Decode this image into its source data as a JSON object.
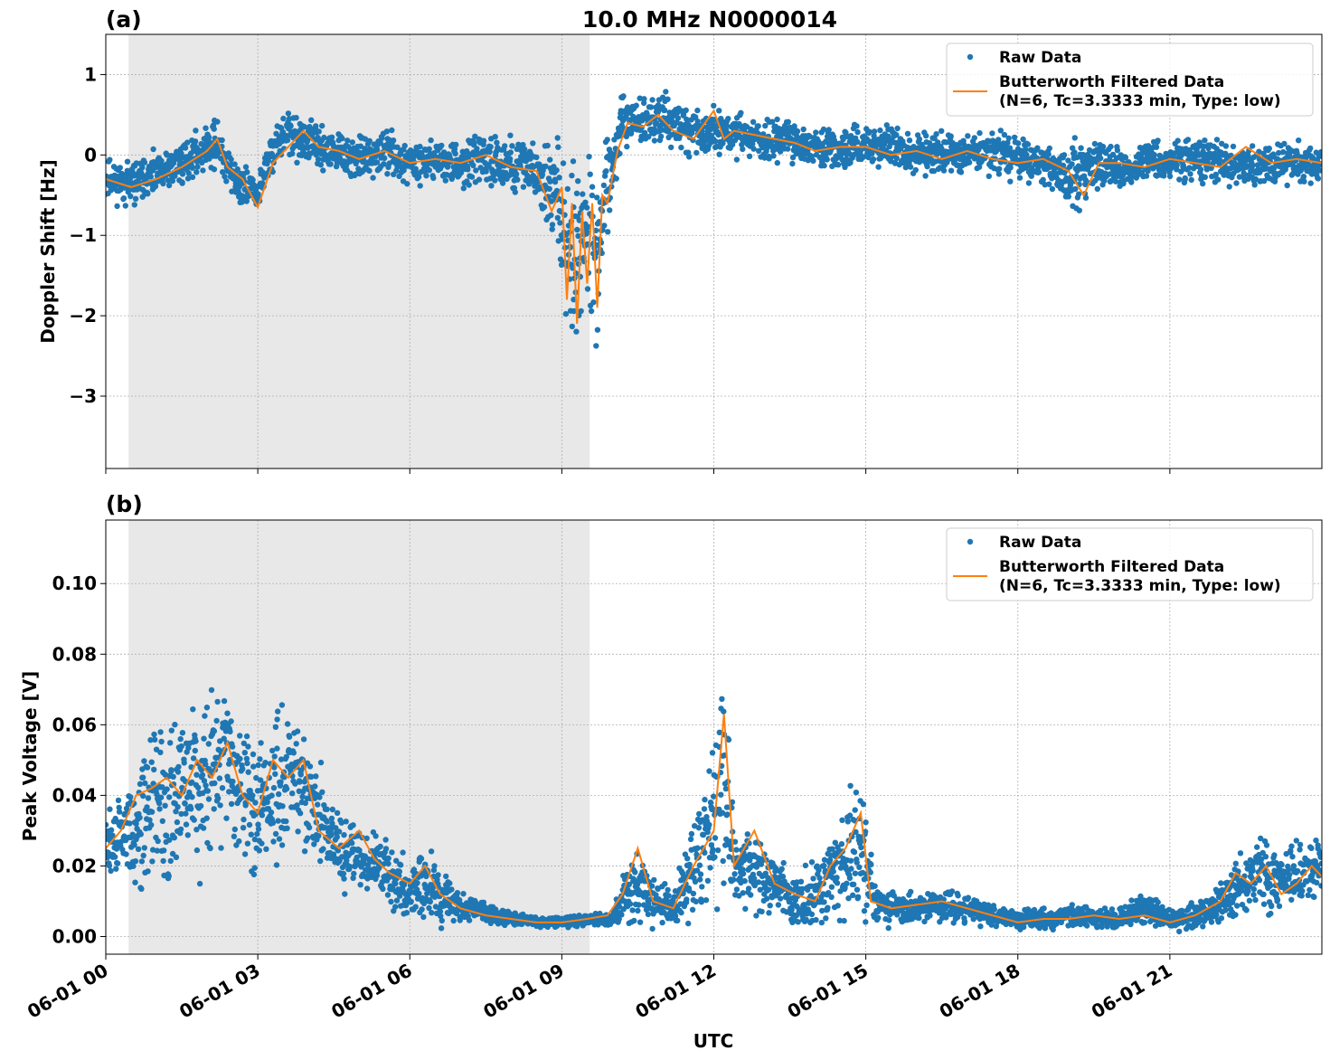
{
  "figure_title": "10.0 MHz N0000014",
  "xlabel": "UTC",
  "x_ticks": [
    "06-01 00",
    "06-01 03",
    "06-01 06",
    "06-01 09",
    "06-01 12",
    "06-01 15",
    "06-01 18",
    "06-01 21"
  ],
  "colors": {
    "raw": "#1f77b4",
    "filtered": "#ff7f0e",
    "shade": "#e8e8e8",
    "grid": "#b0b0b0"
  },
  "legend": {
    "raw_label": "Raw Data",
    "filtered_label_line1": "Butterworth Filtered Data",
    "filtered_label_line2": "(N=6, Tc=3.3333 min, Type: low)",
    "placement": "top-right"
  },
  "chart_data": [
    {
      "type": "scatter",
      "panel_label": "(a)",
      "title": "10.0 MHz N0000014",
      "ylabel": "Doppler Shift [Hz]",
      "xlim_hours": [
        0,
        24
      ],
      "ylim": [
        -3.9,
        1.5
      ],
      "y_ticks": [
        1,
        0,
        -1,
        -2,
        -3
      ],
      "y_tick_labels": [
        "1",
        "0",
        "−1",
        "−2",
        "−3"
      ],
      "shaded_region_hours": [
        0.45,
        9.55
      ],
      "grid": true,
      "series": [
        {
          "name": "Raw Data",
          "x_hours": [
            0,
            0.5,
            1,
            1.5,
            2,
            2.2,
            2.5,
            3,
            3.3,
            3.6,
            4,
            4.5,
            5,
            5.5,
            6,
            6.5,
            7,
            7.5,
            8,
            8.5,
            8.9,
            9.1,
            9.3,
            9.5,
            9.7,
            9.9,
            10.2,
            10.5,
            11,
            11.5,
            12,
            12.5,
            13,
            13.5,
            14,
            14.5,
            15,
            15.5,
            16,
            16.5,
            17,
            17.5,
            18,
            18.5,
            19,
            19.2,
            19.5,
            20,
            20.5,
            21,
            21.5,
            22,
            22.5,
            23,
            23.5,
            24
          ],
          "y_center": [
            -0.3,
            -0.35,
            -0.25,
            -0.1,
            0.1,
            0.15,
            -0.3,
            -0.5,
            0.1,
            0.25,
            0.15,
            0,
            -0.05,
            0.05,
            -0.1,
            -0.05,
            -0.1,
            -0.05,
            -0.1,
            -0.2,
            -0.6,
            -1.0,
            -1.2,
            -0.8,
            -1.2,
            -0.4,
            0.4,
            0.4,
            0.45,
            0.3,
            0.3,
            0.25,
            0.2,
            0.2,
            0.1,
            0.05,
            0.1,
            0.1,
            0,
            0.05,
            0,
            0.05,
            -0.05,
            -0.1,
            -0.3,
            -0.25,
            -0.1,
            -0.15,
            -0.1,
            -0.1,
            -0.05,
            -0.1,
            -0.15,
            -0.1,
            -0.1,
            -0.15
          ],
          "y_spread": [
            0.35,
            0.35,
            0.35,
            0.35,
            0.35,
            0.45,
            0.35,
            0.35,
            0.4,
            0.4,
            0.35,
            0.35,
            0.35,
            0.35,
            0.35,
            0.35,
            0.35,
            0.4,
            0.45,
            0.5,
            1.1,
            1.5,
            1.5,
            1.3,
            1.5,
            0.8,
            0.45,
            0.4,
            0.45,
            0.4,
            0.4,
            0.35,
            0.35,
            0.35,
            0.35,
            0.35,
            0.35,
            0.35,
            0.35,
            0.35,
            0.35,
            0.35,
            0.35,
            0.35,
            0.45,
            0.6,
            0.4,
            0.35,
            0.35,
            0.35,
            0.35,
            0.35,
            0.35,
            0.35,
            0.35,
            0.35
          ]
        },
        {
          "name": "Butterworth Filtered Data (N=6, Tc=3.3333 min, Type: low)",
          "x_hours": [
            0,
            0.5,
            1,
            1.5,
            2,
            2.2,
            2.4,
            2.7,
            3,
            3.3,
            3.6,
            3.9,
            4.2,
            4.6,
            5,
            5.5,
            6,
            6.5,
            7,
            7.5,
            8,
            8.5,
            8.8,
            9.0,
            9.1,
            9.2,
            9.3,
            9.4,
            9.5,
            9.6,
            9.7,
            9.8,
            9.9,
            10.1,
            10.3,
            10.6,
            10.9,
            11.2,
            11.6,
            12,
            12.2,
            12.4,
            12.8,
            13.2,
            13.6,
            14,
            14.5,
            15,
            15.5,
            16,
            16.5,
            17,
            17.5,
            18,
            18.5,
            19,
            19.3,
            19.6,
            20,
            20.5,
            21,
            21.5,
            22,
            22.5,
            23,
            23.5,
            24
          ],
          "y": [
            -0.3,
            -0.4,
            -0.3,
            -0.15,
            0.05,
            0.2,
            -0.15,
            -0.3,
            -0.65,
            -0.1,
            0.1,
            0.3,
            0.1,
            0.05,
            -0.05,
            0.05,
            -0.1,
            -0.05,
            -0.1,
            0,
            -0.15,
            -0.2,
            -0.7,
            -0.4,
            -1.8,
            -0.6,
            -2.1,
            -0.7,
            -1.6,
            -0.6,
            -1.9,
            -0.5,
            -0.6,
            0.05,
            0.4,
            0.35,
            0.5,
            0.3,
            0.2,
            0.55,
            0.2,
            0.3,
            0.25,
            0.2,
            0.15,
            0.05,
            0.1,
            0.1,
            0,
            0.05,
            -0.05,
            0.05,
            -0.05,
            -0.1,
            -0.05,
            -0.2,
            -0.5,
            -0.1,
            -0.1,
            -0.15,
            -0.05,
            -0.1,
            -0.15,
            0.1,
            -0.1,
            -0.05,
            -0.1
          ]
        }
      ]
    },
    {
      "type": "scatter",
      "panel_label": "(b)",
      "ylabel": "Peak Voltage [V]",
      "xlim_hours": [
        0,
        24
      ],
      "ylim": [
        -0.005,
        0.118
      ],
      "y_ticks": [
        0.0,
        0.02,
        0.04,
        0.06,
        0.08,
        0.1
      ],
      "y_tick_labels": [
        "0.00",
        "0.02",
        "0.04",
        "0.06",
        "0.08",
        "0.10"
      ],
      "shaded_region_hours": [
        0.45,
        9.55
      ],
      "grid": true,
      "series": [
        {
          "name": "Raw Data",
          "x_hours": [
            0,
            0.5,
            1,
            1.5,
            2,
            2.3,
            2.6,
            3,
            3.5,
            4,
            4.5,
            5,
            5.5,
            6,
            6.3,
            6.6,
            7,
            7.5,
            8,
            8.5,
            9,
            9.5,
            10,
            10.4,
            10.8,
            11.2,
            11.6,
            12,
            12.2,
            12.4,
            12.8,
            13.2,
            13.6,
            14,
            14.5,
            14.9,
            15.2,
            15.6,
            16,
            16.5,
            17,
            17.5,
            18,
            18.5,
            19,
            19.5,
            20,
            20.5,
            21,
            21.5,
            22,
            22.5,
            22.8,
            23,
            23.5,
            24
          ],
          "y_center": [
            0.025,
            0.03,
            0.04,
            0.042,
            0.045,
            0.05,
            0.045,
            0.035,
            0.045,
            0.04,
            0.025,
            0.022,
            0.02,
            0.012,
            0.015,
            0.012,
            0.008,
            0.007,
            0.005,
            0.004,
            0.004,
            0.005,
            0.005,
            0.015,
            0.01,
            0.008,
            0.02,
            0.03,
            0.045,
            0.02,
            0.02,
            0.015,
            0.01,
            0.012,
            0.02,
            0.025,
            0.01,
            0.008,
            0.008,
            0.009,
            0.008,
            0.006,
            0.005,
            0.005,
            0.006,
            0.005,
            0.005,
            0.008,
            0.005,
            0.006,
            0.01,
            0.015,
            0.02,
            0.015,
            0.018,
            0.02
          ],
          "y_spread": [
            0.012,
            0.02,
            0.03,
            0.03,
            0.03,
            0.03,
            0.028,
            0.025,
            0.03,
            0.025,
            0.015,
            0.012,
            0.012,
            0.01,
            0.018,
            0.01,
            0.006,
            0.004,
            0.003,
            0.002,
            0.002,
            0.002,
            0.003,
            0.015,
            0.01,
            0.008,
            0.02,
            0.03,
            0.05,
            0.02,
            0.015,
            0.012,
            0.01,
            0.012,
            0.02,
            0.025,
            0.008,
            0.006,
            0.006,
            0.006,
            0.005,
            0.004,
            0.004,
            0.004,
            0.004,
            0.004,
            0.004,
            0.006,
            0.004,
            0.005,
            0.008,
            0.012,
            0.015,
            0.012,
            0.012,
            0.012
          ]
        },
        {
          "name": "Butterworth Filtered Data (N=6, Tc=3.3333 min, Type: low)",
          "x_hours": [
            0,
            0.3,
            0.6,
            0.9,
            1.2,
            1.5,
            1.8,
            2.1,
            2.4,
            2.7,
            3,
            3.3,
            3.6,
            3.9,
            4.2,
            4.6,
            5,
            5.3,
            5.6,
            6,
            6.3,
            6.6,
            7,
            7.5,
            8,
            8.5,
            9,
            9.5,
            9.9,
            10.2,
            10.5,
            10.8,
            11.2,
            11.6,
            12,
            12.2,
            12.4,
            12.8,
            13.2,
            13.6,
            14,
            14.3,
            14.6,
            14.9,
            15.1,
            15.5,
            16,
            16.5,
            17,
            17.5,
            18,
            18.5,
            19,
            19.5,
            20,
            20.5,
            21,
            21.5,
            22,
            22.3,
            22.6,
            22.9,
            23.2,
            23.5,
            23.8,
            24
          ],
          "y": [
            0.025,
            0.03,
            0.04,
            0.042,
            0.045,
            0.04,
            0.05,
            0.045,
            0.055,
            0.04,
            0.035,
            0.05,
            0.045,
            0.05,
            0.03,
            0.025,
            0.03,
            0.022,
            0.018,
            0.015,
            0.02,
            0.012,
            0.008,
            0.006,
            0.005,
            0.004,
            0.004,
            0.005,
            0.006,
            0.012,
            0.025,
            0.01,
            0.008,
            0.02,
            0.03,
            0.063,
            0.02,
            0.03,
            0.015,
            0.012,
            0.01,
            0.02,
            0.025,
            0.035,
            0.01,
            0.008,
            0.009,
            0.01,
            0.008,
            0.006,
            0.004,
            0.005,
            0.005,
            0.006,
            0.005,
            0.006,
            0.004,
            0.006,
            0.01,
            0.018,
            0.015,
            0.02,
            0.012,
            0.015,
            0.02,
            0.017
          ]
        }
      ]
    }
  ]
}
